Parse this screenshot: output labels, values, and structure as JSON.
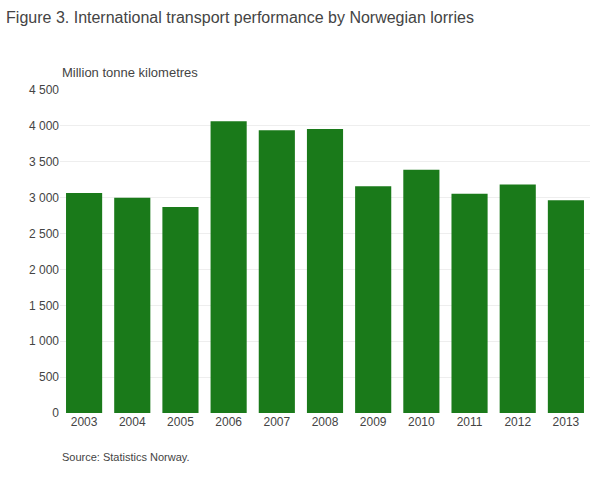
{
  "chart_data": {
    "type": "bar",
    "title": "Figure 3. International transport performance by Norwegian lorries",
    "ylabel": "Million tonne kilometres",
    "source": "Source: Statistics Norway.",
    "categories": [
      "2003",
      "2004",
      "2005",
      "2006",
      "2007",
      "2008",
      "2009",
      "2010",
      "2011",
      "2012",
      "2013"
    ],
    "values": [
      3065,
      3000,
      2870,
      4065,
      3940,
      3955,
      3160,
      3390,
      3055,
      3185,
      2965
    ],
    "color": "#1a7a1a",
    "ylim": [
      0,
      4500
    ],
    "yticks": [
      0,
      500,
      {
        "value": 1000,
        "label": "1 000"
      },
      {
        "value": 1500,
        "label": "1 500"
      },
      {
        "value": 2000,
        "label": "2 000"
      },
      {
        "value": 2500,
        "label": "2 500"
      },
      {
        "value": 3000,
        "label": "3 000"
      },
      {
        "value": 3500,
        "label": "3 500"
      },
      {
        "value": 4000,
        "label": "4 000"
      },
      {
        "value": 4500,
        "label": "4 500"
      }
    ],
    "grid": true
  }
}
